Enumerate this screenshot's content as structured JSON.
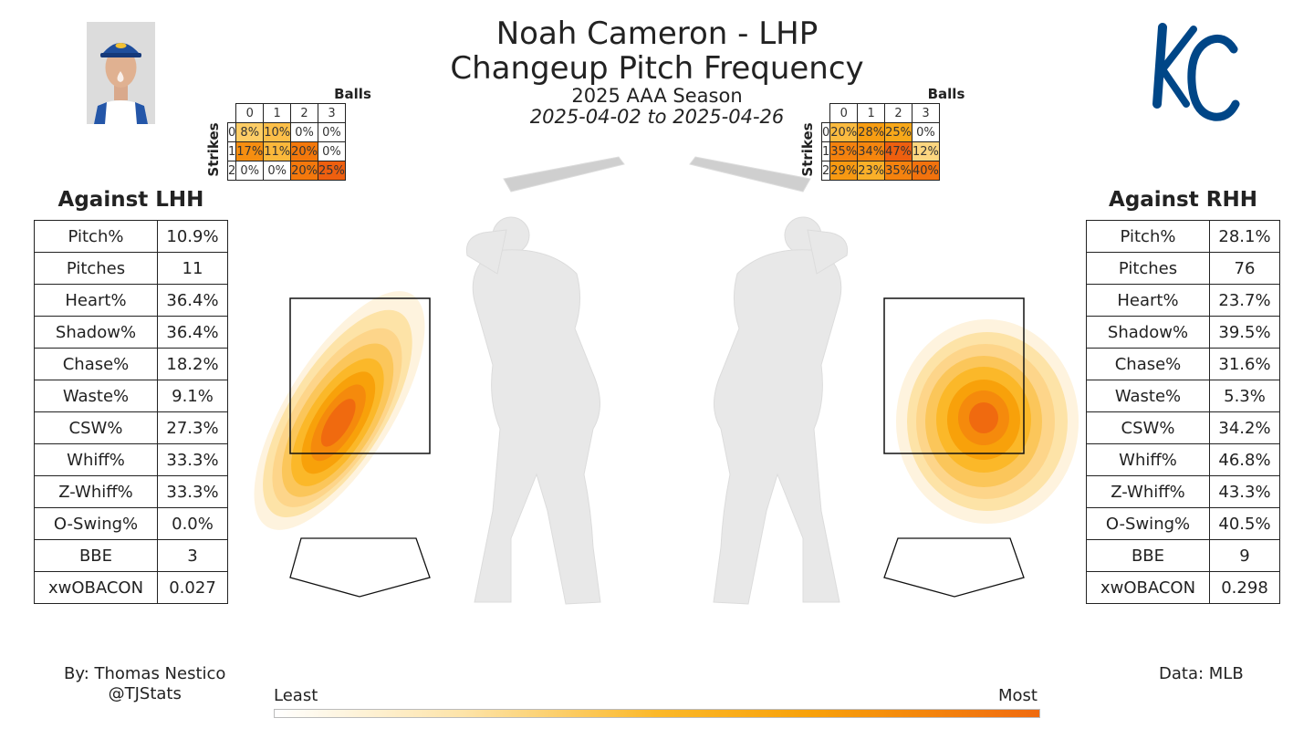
{
  "header": {
    "title_line1": "Noah Cameron - LHP",
    "title_line2": "Changeup Pitch Frequency",
    "season": "2025 AAA Season",
    "dates": "2025-04-02 to 2025-04-26"
  },
  "logo": {
    "team": "KC",
    "color": "#004687"
  },
  "count_labels": {
    "balls": "Balls",
    "strikes": "Strikes",
    "ball_counts": [
      "0",
      "1",
      "2",
      "3"
    ],
    "strike_counts": [
      "0",
      "1",
      "2"
    ]
  },
  "colors": {
    "least": "#ffffff",
    "low": "#fde3a7",
    "mid": "#fbb829",
    "high": "#f8a10a",
    "most": "#f06a0f"
  },
  "lhh": {
    "title": "Against LHH",
    "count_grid": [
      [
        "8%",
        "10%",
        "0%",
        "0%"
      ],
      [
        "17%",
        "11%",
        "20%",
        "0%"
      ],
      [
        "0%",
        "0%",
        "20%",
        "25%"
      ]
    ],
    "count_values": [
      [
        8,
        10,
        0,
        0
      ],
      [
        17,
        11,
        20,
        0
      ],
      [
        0,
        0,
        20,
        25
      ]
    ],
    "stats": [
      {
        "label": "Pitch%",
        "value": "10.9%"
      },
      {
        "label": "Pitches",
        "value": "11"
      },
      {
        "label": "Heart%",
        "value": "36.4%"
      },
      {
        "label": "Shadow%",
        "value": "36.4%"
      },
      {
        "label": "Chase%",
        "value": "18.2%"
      },
      {
        "label": "Waste%",
        "value": "9.1%"
      },
      {
        "label": "CSW%",
        "value": "27.3%"
      },
      {
        "label": "Whiff%",
        "value": "33.3%"
      },
      {
        "label": "Z-Whiff%",
        "value": "33.3%"
      },
      {
        "label": "O-Swing%",
        "value": "0.0%"
      },
      {
        "label": "BBE",
        "value": "3"
      },
      {
        "label": "xwOBACON",
        "value": "0.027"
      }
    ]
  },
  "rhh": {
    "title": "Against RHH",
    "count_grid": [
      [
        "20%",
        "28%",
        "25%",
        "0%"
      ],
      [
        "35%",
        "34%",
        "47%",
        "12%"
      ],
      [
        "29%",
        "23%",
        "35%",
        "40%"
      ]
    ],
    "count_values": [
      [
        20,
        28,
        25,
        0
      ],
      [
        35,
        34,
        47,
        12
      ],
      [
        29,
        23,
        35,
        40
      ]
    ],
    "stats": [
      {
        "label": "Pitch%",
        "value": "28.1%"
      },
      {
        "label": "Pitches",
        "value": "76"
      },
      {
        "label": "Heart%",
        "value": "23.7%"
      },
      {
        "label": "Shadow%",
        "value": "39.5%"
      },
      {
        "label": "Chase%",
        "value": "31.6%"
      },
      {
        "label": "Waste%",
        "value": "5.3%"
      },
      {
        "label": "CSW%",
        "value": "34.2%"
      },
      {
        "label": "Whiff%",
        "value": "46.8%"
      },
      {
        "label": "Z-Whiff%",
        "value": "43.3%"
      },
      {
        "label": "O-Swing%",
        "value": "40.5%"
      },
      {
        "label": "BBE",
        "value": "9"
      },
      {
        "label": "xwOBACON",
        "value": "0.298"
      }
    ]
  },
  "footer": {
    "author_line1": "By: Thomas Nestico",
    "author_line2": "@TJStats",
    "source": "Data: MLB",
    "colorbar_least": "Least",
    "colorbar_most": "Most"
  },
  "chart_data": {
    "type": "heatmap",
    "panels": [
      {
        "batter_side": "LHH",
        "count_frequency": {
          "balls": [
            0,
            1,
            2,
            3
          ],
          "strikes": [
            0,
            1,
            2
          ],
          "values_percent": [
            [
              8,
              10,
              0,
              0
            ],
            [
              17,
              11,
              20,
              0
            ],
            [
              0,
              0,
              20,
              25
            ]
          ]
        }
      },
      {
        "batter_side": "RHH",
        "count_frequency": {
          "balls": [
            0,
            1,
            2,
            3
          ],
          "strikes": [
            0,
            1,
            2
          ],
          "values_percent": [
            [
              20,
              28,
              25,
              0
            ],
            [
              35,
              34,
              47,
              12
            ],
            [
              29,
              23,
              35,
              40
            ]
          ]
        }
      }
    ],
    "location_density": [
      {
        "batter_side": "LHH",
        "peak_region": "middle-in to down, elongated diagonal"
      },
      {
        "batter_side": "RHH",
        "peak_region": "middle to slightly down-away"
      }
    ]
  }
}
